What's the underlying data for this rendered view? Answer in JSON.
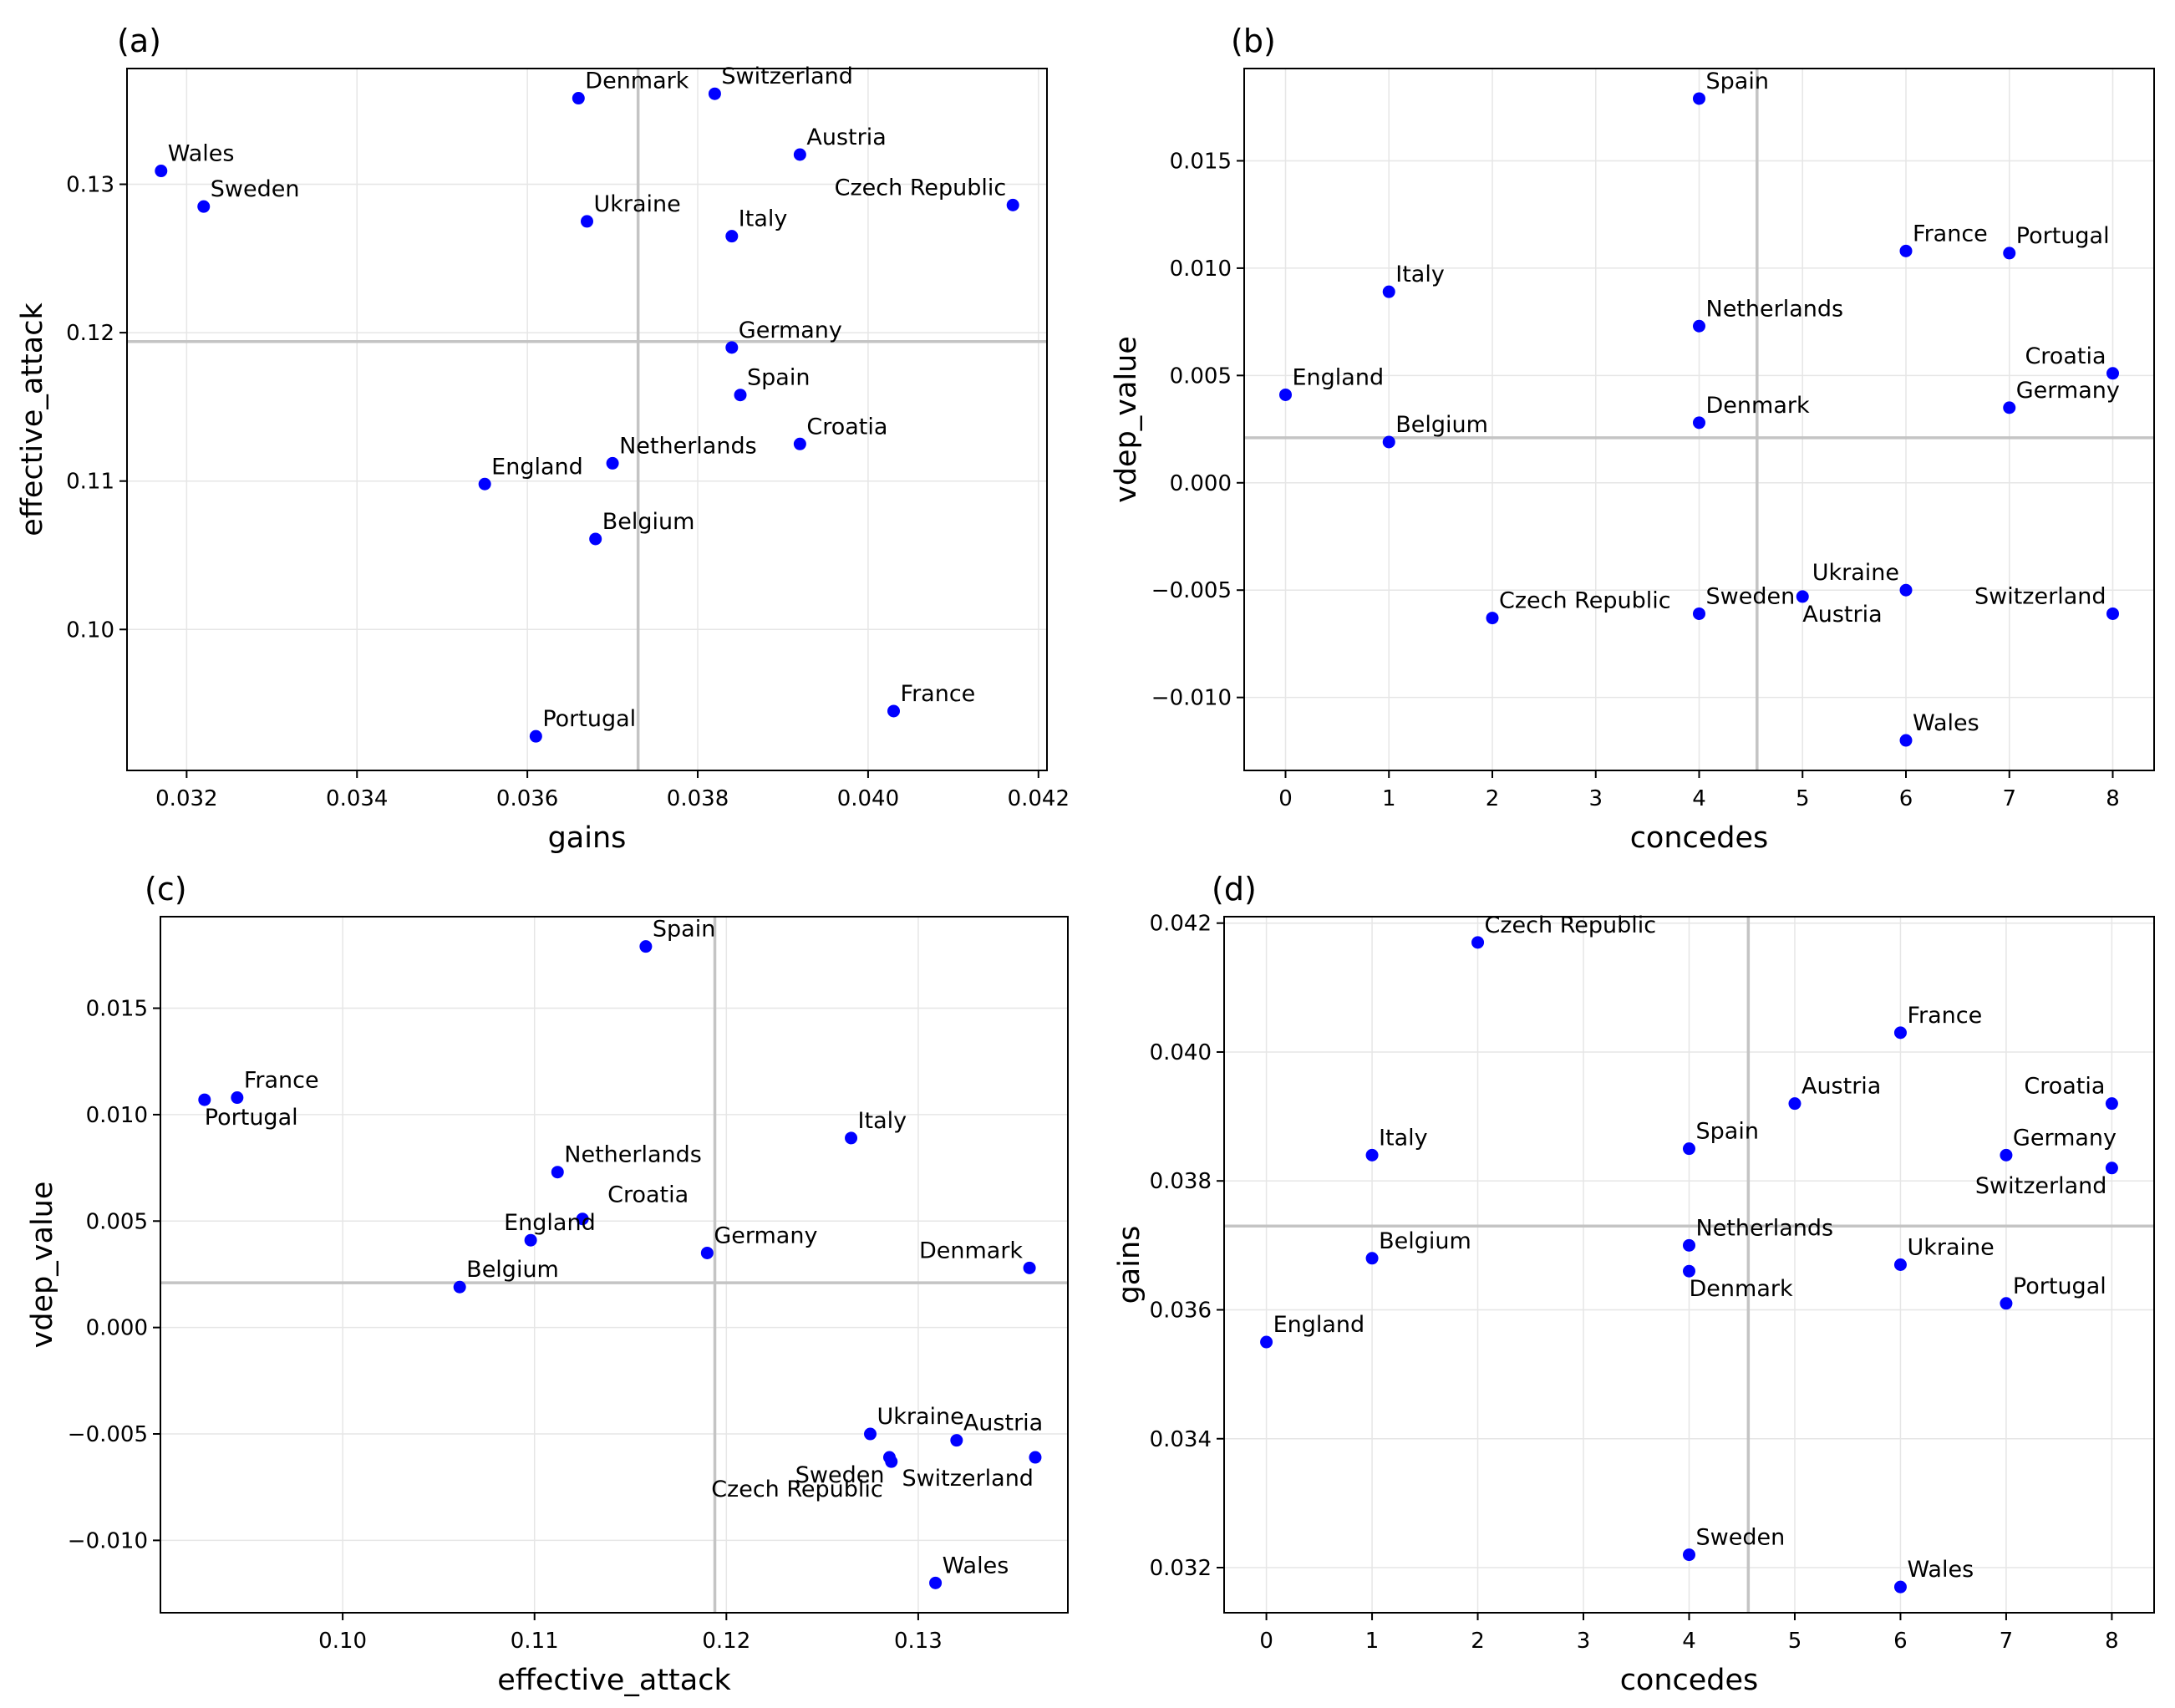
{
  "chart_data": [
    {
      "type": "scatter",
      "panel_label": "(a)",
      "xlabel": "gains",
      "ylabel": "effective_attack",
      "xlim": [
        0.0313,
        0.0421
      ],
      "ylim": [
        0.0905,
        0.1378
      ],
      "xticks": [
        0.032,
        0.034,
        0.036,
        0.038,
        0.04,
        0.042
      ],
      "xtick_labels": [
        "0.032",
        "0.034",
        "0.036",
        "0.038",
        "0.040",
        "0.042"
      ],
      "yticks": [
        0.1,
        0.11,
        0.12,
        0.13
      ],
      "ytick_labels": [
        "0.10",
        "0.11",
        "0.12",
        "0.13"
      ],
      "vline": 0.0373,
      "hline": 0.1194,
      "grid": true,
      "color": "#0000ff",
      "points": [
        {
          "label": "Wales",
          "x": 0.0317,
          "y": 0.1309,
          "pos": "ne"
        },
        {
          "label": "Sweden",
          "x": 0.0322,
          "y": 0.1285,
          "pos": "ne"
        },
        {
          "label": "Denmark",
          "x": 0.0366,
          "y": 0.1358,
          "pos": "ne"
        },
        {
          "label": "Switzerland",
          "x": 0.0382,
          "y": 0.1361,
          "pos": "ne"
        },
        {
          "label": "Austria",
          "x": 0.0392,
          "y": 0.132,
          "pos": "ne"
        },
        {
          "label": "Czech Republic",
          "x": 0.0417,
          "y": 0.1286,
          "pos": "nw"
        },
        {
          "label": "Ukraine",
          "x": 0.0367,
          "y": 0.1275,
          "pos": "ne"
        },
        {
          "label": "Italy",
          "x": 0.0384,
          "y": 0.1265,
          "pos": "ne"
        },
        {
          "label": "Germany",
          "x": 0.0384,
          "y": 0.119,
          "pos": "ne"
        },
        {
          "label": "Spain",
          "x": 0.0385,
          "y": 0.1158,
          "pos": "ne"
        },
        {
          "label": "Croatia",
          "x": 0.0392,
          "y": 0.1125,
          "pos": "ne"
        },
        {
          "label": "Netherlands",
          "x": 0.037,
          "y": 0.1112,
          "pos": "ne"
        },
        {
          "label": "England",
          "x": 0.0355,
          "y": 0.1098,
          "pos": "ne"
        },
        {
          "label": "Belgium",
          "x": 0.0368,
          "y": 0.1061,
          "pos": "ne"
        },
        {
          "label": "France",
          "x": 0.0403,
          "y": 0.0945,
          "pos": "ne"
        },
        {
          "label": "Portugal",
          "x": 0.0361,
          "y": 0.0928,
          "pos": "ne"
        }
      ]
    },
    {
      "type": "scatter",
      "panel_label": "(b)",
      "xlabel": "concedes",
      "ylabel": "vdep_value",
      "xlim": [
        -0.4,
        8.4
      ],
      "ylim": [
        -0.0134,
        0.0193
      ],
      "xticks": [
        0,
        1,
        2,
        3,
        4,
        5,
        6,
        7,
        8
      ],
      "xtick_labels": [
        "0",
        "1",
        "2",
        "3",
        "4",
        "5",
        "6",
        "7",
        "8"
      ],
      "yticks": [
        -0.01,
        -0.005,
        0.0,
        0.005,
        0.01,
        0.015
      ],
      "ytick_labels": [
        "−0.010",
        "−0.005",
        "0.000",
        "0.005",
        "0.010",
        "0.015"
      ],
      "vline": 4.56,
      "hline": 0.0021,
      "grid": true,
      "color": "#0000ff",
      "points": [
        {
          "label": "Spain",
          "x": 4,
          "y": 0.0179,
          "pos": "ne"
        },
        {
          "label": "France",
          "x": 6,
          "y": 0.0108,
          "pos": "ne"
        },
        {
          "label": "Portugal",
          "x": 7,
          "y": 0.0107,
          "pos": "ne"
        },
        {
          "label": "Italy",
          "x": 1,
          "y": 0.0089,
          "pos": "ne"
        },
        {
          "label": "Netherlands",
          "x": 4,
          "y": 0.0073,
          "pos": "ne"
        },
        {
          "label": "Croatia",
          "x": 8,
          "y": 0.0051,
          "pos": "nw"
        },
        {
          "label": "England",
          "x": 0,
          "y": 0.0041,
          "pos": "ne"
        },
        {
          "label": "Germany",
          "x": 7,
          "y": 0.0035,
          "pos": "ne"
        },
        {
          "label": "Denmark",
          "x": 4,
          "y": 0.0028,
          "pos": "ne"
        },
        {
          "label": "Belgium",
          "x": 1,
          "y": 0.0019,
          "pos": "ne"
        },
        {
          "label": "Ukraine",
          "x": 6,
          "y": -0.005,
          "pos": "nw"
        },
        {
          "label": "Austria",
          "x": 5,
          "y": -0.0053,
          "pos": "se"
        },
        {
          "label": "Sweden",
          "x": 4,
          "y": -0.0061,
          "pos": "ne"
        },
        {
          "label": "Switzerland",
          "x": 8,
          "y": -0.0061,
          "pos": "nw"
        },
        {
          "label": "Czech Republic",
          "x": 2,
          "y": -0.0063,
          "pos": "ne"
        },
        {
          "label": "Wales",
          "x": 6,
          "y": -0.012,
          "pos": "ne"
        }
      ]
    },
    {
      "type": "scatter",
      "panel_label": "(c)",
      "xlabel": "effective_attack",
      "ylabel": "vdep_value",
      "xlim": [
        0.0905,
        0.1378
      ],
      "ylim": [
        -0.0134,
        0.0193
      ],
      "xticks": [
        0.1,
        0.11,
        0.12,
        0.13
      ],
      "xtick_labels": [
        "0.10",
        "0.11",
        "0.12",
        "0.13"
      ],
      "yticks": [
        -0.01,
        -0.005,
        0.0,
        0.005,
        0.01,
        0.015
      ],
      "ytick_labels": [
        "−0.010",
        "−0.005",
        "0.000",
        "0.005",
        "0.010",
        "0.015"
      ],
      "vline": 0.1194,
      "hline": 0.0021,
      "grid": true,
      "color": "#0000ff",
      "points": [
        {
          "label": "Spain",
          "x": 0.1158,
          "y": 0.0179,
          "pos": "ne"
        },
        {
          "label": "France",
          "x": 0.0945,
          "y": 0.0108,
          "pos": "ne"
        },
        {
          "label": "Portugal",
          "x": 0.0928,
          "y": 0.0107,
          "pos": "se"
        },
        {
          "label": "Italy",
          "x": 0.1265,
          "y": 0.0089,
          "pos": "ne"
        },
        {
          "label": "Netherlands",
          "x": 0.1112,
          "y": 0.0073,
          "pos": "ne"
        },
        {
          "label": "Croatia",
          "x": 0.1125,
          "y": 0.0051,
          "pos": "ne2"
        },
        {
          "label": "England",
          "x": 0.1098,
          "y": 0.0041,
          "pos": "n"
        },
        {
          "label": "Germany",
          "x": 0.119,
          "y": 0.0035,
          "pos": "ne"
        },
        {
          "label": "Denmark",
          "x": 0.1358,
          "y": 0.0028,
          "pos": "nw"
        },
        {
          "label": "Belgium",
          "x": 0.1061,
          "y": 0.0019,
          "pos": "ne"
        },
        {
          "label": "Ukraine",
          "x": 0.1275,
          "y": -0.005,
          "pos": "ne"
        },
        {
          "label": "Austria",
          "x": 0.132,
          "y": -0.0053,
          "pos": "ne"
        },
        {
          "label": "Sweden",
          "x": 0.1285,
          "y": -0.0061,
          "pos": "sw"
        },
        {
          "label": "Switzerland",
          "x": 0.1361,
          "y": -0.0061,
          "pos": "sw2"
        },
        {
          "label": "Czech Republic",
          "x": 0.1286,
          "y": -0.0063,
          "pos": "sw3"
        },
        {
          "label": "Wales",
          "x": 0.1309,
          "y": -0.012,
          "pos": "ne"
        }
      ]
    },
    {
      "type": "scatter",
      "panel_label": "(d)",
      "xlabel": "concedes",
      "ylabel": "gains",
      "xlim": [
        -0.4,
        8.4
      ],
      "ylim": [
        0.0313,
        0.0421
      ],
      "xticks": [
        0,
        1,
        2,
        3,
        4,
        5,
        6,
        7,
        8
      ],
      "xtick_labels": [
        "0",
        "1",
        "2",
        "3",
        "4",
        "5",
        "6",
        "7",
        "8"
      ],
      "yticks": [
        0.032,
        0.034,
        0.036,
        0.038,
        0.04,
        0.042
      ],
      "ytick_labels": [
        "0.032",
        "0.034",
        "0.036",
        "0.038",
        "0.040",
        "0.042"
      ],
      "vline": 4.56,
      "hline": 0.0373,
      "grid": true,
      "color": "#0000ff",
      "points": [
        {
          "label": "Czech Republic",
          "x": 2,
          "y": 0.0417,
          "pos": "ne"
        },
        {
          "label": "France",
          "x": 6,
          "y": 0.0403,
          "pos": "ne"
        },
        {
          "label": "Austria",
          "x": 5,
          "y": 0.0392,
          "pos": "ne"
        },
        {
          "label": "Croatia",
          "x": 8,
          "y": 0.0392,
          "pos": "nw"
        },
        {
          "label": "Italy",
          "x": 1,
          "y": 0.0384,
          "pos": "ne"
        },
        {
          "label": "Spain",
          "x": 4,
          "y": 0.0385,
          "pos": "ne"
        },
        {
          "label": "Germany",
          "x": 7,
          "y": 0.0384,
          "pos": "ne"
        },
        {
          "label": "Switzerland",
          "x": 8,
          "y": 0.0382,
          "pos": "sw"
        },
        {
          "label": "Netherlands",
          "x": 4,
          "y": 0.037,
          "pos": "ne"
        },
        {
          "label": "Belgium",
          "x": 1,
          "y": 0.0368,
          "pos": "ne"
        },
        {
          "label": "Ukraine",
          "x": 6,
          "y": 0.0367,
          "pos": "ne"
        },
        {
          "label": "Denmark",
          "x": 4,
          "y": 0.0366,
          "pos": "se"
        },
        {
          "label": "Portugal",
          "x": 7,
          "y": 0.0361,
          "pos": "ne"
        },
        {
          "label": "England",
          "x": 0,
          "y": 0.0355,
          "pos": "ne"
        },
        {
          "label": "Sweden",
          "x": 4,
          "y": 0.0322,
          "pos": "ne"
        },
        {
          "label": "Wales",
          "x": 6,
          "y": 0.0317,
          "pos": "ne"
        }
      ]
    }
  ]
}
